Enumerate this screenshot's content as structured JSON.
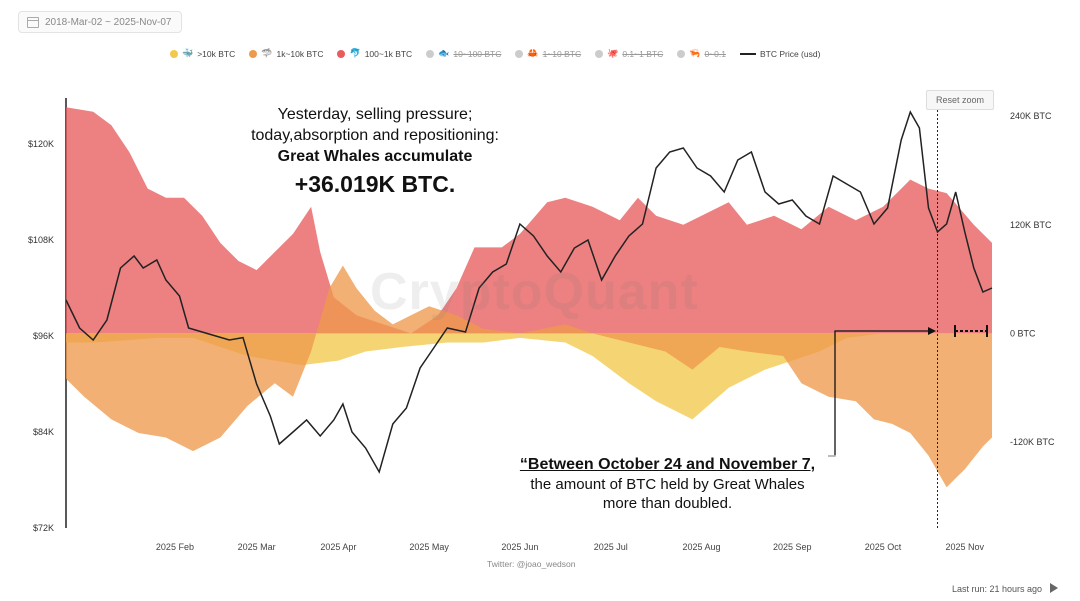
{
  "header": {
    "date_range": "2018-Mar-02 ~ 2025-Nov-07"
  },
  "legend": [
    {
      "label": ">10k BTC",
      "color": "#f2c94c",
      "glyph": "🐳",
      "active": true
    },
    {
      "label": "1k~10k BTC",
      "color": "#ee9a4d",
      "glyph": "🦈",
      "active": true
    },
    {
      "label": "100~1k BTC",
      "color": "#e85c5c",
      "glyph": "🐬",
      "active": true
    },
    {
      "label": "10~100 BTC",
      "color": "#cccccc",
      "glyph": "🐟",
      "active": false
    },
    {
      "label": "1~10 BTC",
      "color": "#cccccc",
      "glyph": "🦀",
      "active": false
    },
    {
      "label": "0.1~1 BTC",
      "color": "#cccccc",
      "glyph": "🐙",
      "active": false
    },
    {
      "label": "0~0.1",
      "color": "#cccccc",
      "glyph": "🦐",
      "active": false
    },
    {
      "label": "BTC Price (usd)",
      "color": "#222222",
      "type": "line",
      "active": true
    }
  ],
  "controls": {
    "reset_zoom": "Reset zoom",
    "last_run": "Last run: 21 hours ago"
  },
  "watermark": "CryptoQuant",
  "credit": "Twitter: @joao_wedson",
  "annotations": {
    "top_line1": "Yesterday, selling pressure;",
    "top_line2": "today,absorption and repositioning:",
    "top_line3": "Great Whales accumulate",
    "top_line4": "+36.019K BTC.",
    "bottom_line1": "“Between October 24 and November 7,",
    "bottom_line2": "the amount of BTC held by Great Whales",
    "bottom_line3": "more than doubled."
  },
  "chart_data": {
    "type": "area",
    "x_labels": [
      "2025 Feb",
      "2025 Mar",
      "2025 Apr",
      "2025 May",
      "2025 Jun",
      "2025 Jul",
      "2025 Aug",
      "2025 Sep",
      "2025 Oct",
      "2025 Nov"
    ],
    "x_label_pos": [
      1.2,
      2.1,
      3.0,
      4.0,
      5.0,
      6.0,
      7.0,
      8.0,
      9.0,
      9.9
    ],
    "x_range": [
      0,
      10.2
    ],
    "left_axis": {
      "ticks": [
        72000,
        84000,
        96000,
        108000,
        120000
      ],
      "tick_labels": [
        "$72K",
        "$84K",
        "$96K",
        "$108K",
        "$120K"
      ],
      "range": [
        72000,
        128000
      ]
    },
    "right_axis": {
      "ticks": [
        -120000,
        0,
        120000,
        240000
      ],
      "tick_labels": [
        "-120K BTC",
        "0 BTC",
        "120K BTC",
        "240K BTC"
      ],
      "range": [
        -215000,
        280000
      ]
    },
    "series": [
      {
        "name": "100~1k BTC",
        "color": "#e85c5c",
        "axis": "right",
        "points": [
          [
            0,
            250000
          ],
          [
            0.3,
            245000
          ],
          [
            0.5,
            230000
          ],
          [
            0.7,
            200000
          ],
          [
            0.9,
            160000
          ],
          [
            1.1,
            150000
          ],
          [
            1.3,
            150000
          ],
          [
            1.5,
            130000
          ],
          [
            1.7,
            100000
          ],
          [
            1.9,
            80000
          ],
          [
            2.1,
            70000
          ],
          [
            2.3,
            90000
          ],
          [
            2.5,
            110000
          ],
          [
            2.7,
            140000
          ],
          [
            2.8,
            90000
          ],
          [
            2.95,
            40000
          ],
          [
            3.2,
            20000
          ],
          [
            3.5,
            10000
          ],
          [
            3.8,
            0
          ],
          [
            4.1,
            20000
          ],
          [
            4.3,
            50000
          ],
          [
            4.5,
            95000
          ],
          [
            4.8,
            95000
          ],
          [
            5.0,
            110000
          ],
          [
            5.3,
            145000
          ],
          [
            5.5,
            150000
          ],
          [
            5.8,
            140000
          ],
          [
            6.1,
            125000
          ],
          [
            6.3,
            150000
          ],
          [
            6.5,
            130000
          ],
          [
            6.8,
            120000
          ],
          [
            7.0,
            130000
          ],
          [
            7.3,
            145000
          ],
          [
            7.5,
            120000
          ],
          [
            7.8,
            130000
          ],
          [
            8.1,
            115000
          ],
          [
            8.4,
            140000
          ],
          [
            8.7,
            125000
          ],
          [
            9.0,
            140000
          ],
          [
            9.3,
            170000
          ],
          [
            9.5,
            160000
          ],
          [
            9.7,
            155000
          ],
          [
            10.0,
            120000
          ],
          [
            10.2,
            100000
          ]
        ]
      },
      {
        "name": ">10k BTC",
        "color": "#f2c94c",
        "axis": "right",
        "points": [
          [
            0,
            -10000
          ],
          [
            0.3,
            -10000
          ],
          [
            0.6,
            -8000
          ],
          [
            1.0,
            -5000
          ],
          [
            1.4,
            -5000
          ],
          [
            1.7,
            -15000
          ],
          [
            2.0,
            -25000
          ],
          [
            2.3,
            -30000
          ],
          [
            2.6,
            -35000
          ],
          [
            3.0,
            -30000
          ],
          [
            3.3,
            -20000
          ],
          [
            3.7,
            -15000
          ],
          [
            4.2,
            -10000
          ],
          [
            4.6,
            -10000
          ],
          [
            5.0,
            -5000
          ],
          [
            5.5,
            -10000
          ],
          [
            5.8,
            -25000
          ],
          [
            6.2,
            -55000
          ],
          [
            6.5,
            -75000
          ],
          [
            6.9,
            -95000
          ],
          [
            7.3,
            -60000
          ],
          [
            7.7,
            -40000
          ],
          [
            8.0,
            -30000
          ],
          [
            8.3,
            -20000
          ],
          [
            8.6,
            -5000
          ],
          [
            9.0,
            0
          ],
          [
            9.4,
            0
          ],
          [
            9.7,
            0
          ],
          [
            10.0,
            0
          ],
          [
            10.2,
            0
          ]
        ]
      },
      {
        "name": "1k~10k BTC",
        "color": "#ee9a4d",
        "axis": "right",
        "points": [
          [
            0,
            -50000
          ],
          [
            0.2,
            -70000
          ],
          [
            0.5,
            -95000
          ],
          [
            0.8,
            -110000
          ],
          [
            1.1,
            -115000
          ],
          [
            1.4,
            -130000
          ],
          [
            1.7,
            -115000
          ],
          [
            2.0,
            -80000
          ],
          [
            2.3,
            -55000
          ],
          [
            2.5,
            -70000
          ],
          [
            2.7,
            -20000
          ],
          [
            2.9,
            50000
          ],
          [
            3.05,
            75000
          ],
          [
            3.2,
            50000
          ],
          [
            3.4,
            25000
          ],
          [
            3.6,
            10000
          ],
          [
            3.8,
            20000
          ],
          [
            4.0,
            30000
          ],
          [
            4.3,
            20000
          ],
          [
            4.6,
            5000
          ],
          [
            5.0,
            0
          ],
          [
            5.5,
            10000
          ],
          [
            5.8,
            0
          ],
          [
            6.2,
            -10000
          ],
          [
            6.6,
            -20000
          ],
          [
            6.9,
            -40000
          ],
          [
            7.2,
            -15000
          ],
          [
            7.5,
            -20000
          ],
          [
            7.9,
            -25000
          ],
          [
            8.1,
            -55000
          ],
          [
            8.4,
            -70000
          ],
          [
            8.7,
            -75000
          ],
          [
            8.9,
            -95000
          ],
          [
            9.1,
            -100000
          ],
          [
            9.3,
            -110000
          ],
          [
            9.5,
            -135000
          ],
          [
            9.7,
            -170000
          ],
          [
            9.9,
            -150000
          ],
          [
            10.1,
            -125000
          ],
          [
            10.2,
            -115000
          ]
        ]
      },
      {
        "name": "BTC Price (usd)",
        "color": "#222222",
        "axis": "left",
        "line": true,
        "points": [
          [
            0.0,
            100500
          ],
          [
            0.15,
            97000
          ],
          [
            0.3,
            95500
          ],
          [
            0.45,
            98000
          ],
          [
            0.6,
            104500
          ],
          [
            0.75,
            106000
          ],
          [
            0.85,
            104500
          ],
          [
            1.0,
            105500
          ],
          [
            1.1,
            103000
          ],
          [
            1.25,
            101000
          ],
          [
            1.35,
            97000
          ],
          [
            1.5,
            96500
          ],
          [
            1.65,
            96000
          ],
          [
            1.8,
            95500
          ],
          [
            1.95,
            95800
          ],
          [
            2.1,
            90000
          ],
          [
            2.25,
            86000
          ],
          [
            2.35,
            82500
          ],
          [
            2.5,
            84000
          ],
          [
            2.65,
            85500
          ],
          [
            2.8,
            83500
          ],
          [
            2.95,
            85500
          ],
          [
            3.05,
            87500
          ],
          [
            3.15,
            84000
          ],
          [
            3.3,
            82000
          ],
          [
            3.45,
            79000
          ],
          [
            3.6,
            85000
          ],
          [
            3.75,
            87000
          ],
          [
            3.9,
            92000
          ],
          [
            4.05,
            94500
          ],
          [
            4.2,
            97000
          ],
          [
            4.4,
            96500
          ],
          [
            4.55,
            102000
          ],
          [
            4.7,
            104000
          ],
          [
            4.85,
            105000
          ],
          [
            5.0,
            110000
          ],
          [
            5.15,
            108500
          ],
          [
            5.3,
            106000
          ],
          [
            5.45,
            104000
          ],
          [
            5.6,
            107000
          ],
          [
            5.75,
            108000
          ],
          [
            5.9,
            103000
          ],
          [
            6.05,
            106000
          ],
          [
            6.2,
            108500
          ],
          [
            6.35,
            110000
          ],
          [
            6.5,
            117000
          ],
          [
            6.65,
            119000
          ],
          [
            6.8,
            119500
          ],
          [
            6.95,
            117000
          ],
          [
            7.1,
            116000
          ],
          [
            7.25,
            114000
          ],
          [
            7.4,
            118000
          ],
          [
            7.55,
            119000
          ],
          [
            7.7,
            114000
          ],
          [
            7.85,
            112500
          ],
          [
            8.0,
            113000
          ],
          [
            8.15,
            111000
          ],
          [
            8.3,
            110000
          ],
          [
            8.45,
            116000
          ],
          [
            8.6,
            115000
          ],
          [
            8.75,
            114000
          ],
          [
            8.9,
            110000
          ],
          [
            9.05,
            112000
          ],
          [
            9.2,
            120500
          ],
          [
            9.3,
            124000
          ],
          [
            9.4,
            122000
          ],
          [
            9.5,
            112000
          ],
          [
            9.6,
            109000
          ],
          [
            9.7,
            110000
          ],
          [
            9.8,
            114000
          ],
          [
            9.9,
            109000
          ],
          [
            10.0,
            104500
          ],
          [
            10.1,
            101500
          ],
          [
            10.2,
            102000
          ]
        ]
      }
    ],
    "marker_x": 9.6
  }
}
